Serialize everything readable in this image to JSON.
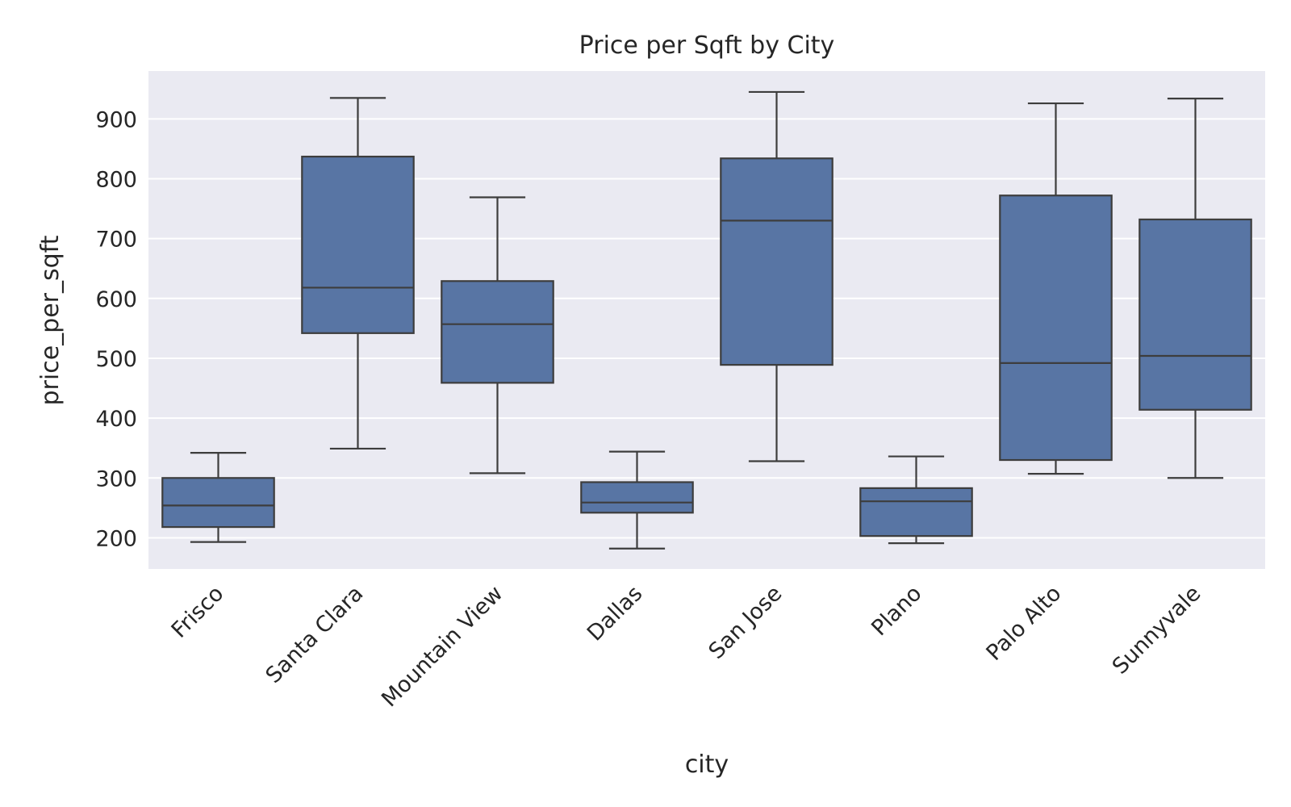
{
  "chart_data": {
    "type": "box",
    "title": "Price per Sqft by City",
    "xlabel": "city",
    "ylabel": "price_per_sqft",
    "ylim": [
      148,
      980
    ],
    "yticks": [
      200,
      300,
      400,
      500,
      600,
      700,
      800,
      900
    ],
    "grid": true,
    "colors": {
      "box": "#5875a4",
      "line": "#3d3d3d",
      "background": "#eaeaf2",
      "grid": "#ffffff"
    },
    "categories": [
      "Frisco",
      "Santa Clara",
      "Mountain View",
      "Dallas",
      "San Jose",
      "Plano",
      "Palo Alto",
      "Sunnyvale"
    ],
    "boxes": [
      {
        "city": "Frisco",
        "min": 193,
        "q1": 218,
        "median": 254,
        "q3": 300,
        "max": 342
      },
      {
        "city": "Santa Clara",
        "min": 349,
        "q1": 542,
        "median": 618,
        "q3": 837,
        "max": 935
      },
      {
        "city": "Mountain View",
        "min": 308,
        "q1": 459,
        "median": 557,
        "q3": 629,
        "max": 769
      },
      {
        "city": "Dallas",
        "min": 182,
        "q1": 242,
        "median": 259,
        "q3": 293,
        "max": 344
      },
      {
        "city": "San Jose",
        "min": 328,
        "q1": 489,
        "median": 730,
        "q3": 834,
        "max": 945
      },
      {
        "city": "Plano",
        "min": 191,
        "q1": 203,
        "median": 261,
        "q3": 283,
        "max": 336
      },
      {
        "city": "Palo Alto",
        "min": 307,
        "q1": 330,
        "median": 492,
        "q3": 772,
        "max": 926
      },
      {
        "city": "Sunnyvale",
        "min": 300,
        "q1": 414,
        "median": 504,
        "q3": 732,
        "max": 934
      }
    ]
  }
}
